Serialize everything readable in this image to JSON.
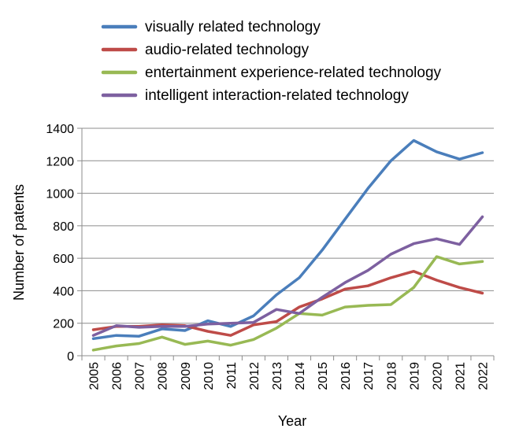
{
  "chart_data": {
    "type": "line",
    "title": "",
    "xlabel": "Year",
    "ylabel": "Number of patents",
    "ylim": [
      0,
      1400
    ],
    "yticks": [
      0,
      200,
      400,
      600,
      800,
      1000,
      1200,
      1400
    ],
    "grid": "horizontal",
    "legend_position": "top",
    "categories": [
      "2005",
      "2006",
      "2007",
      "2008",
      "2009",
      "2010",
      "2011",
      "2012",
      "2013",
      "2014",
      "2015",
      "2016",
      "2017",
      "2018",
      "2019",
      "2020",
      "2021",
      "2022"
    ],
    "series": [
      {
        "name": "visually related technology",
        "color": "#4a7ebb",
        "values": [
          105,
          125,
          120,
          165,
          155,
          215,
          180,
          245,
          375,
          480,
          650,
          840,
          1030,
          1200,
          1325,
          1255,
          1210,
          1250
        ]
      },
      {
        "name": "audio-related technology",
        "color": "#be4b48",
        "values": [
          160,
          180,
          180,
          190,
          185,
          150,
          125,
          190,
          210,
          300,
          350,
          410,
          430,
          480,
          520,
          465,
          420,
          385
        ]
      },
      {
        "name": "entertainment experience-related technology",
        "color": "#98b954",
        "values": [
          35,
          60,
          75,
          115,
          70,
          90,
          65,
          100,
          170,
          260,
          250,
          300,
          310,
          315,
          420,
          610,
          565,
          580
        ]
      },
      {
        "name": "intelligent interaction-related technology",
        "color": "#7d60a0",
        "values": [
          125,
          185,
          175,
          180,
          180,
          195,
          200,
          205,
          285,
          260,
          360,
          450,
          525,
          625,
          690,
          720,
          685,
          855
        ]
      }
    ]
  }
}
